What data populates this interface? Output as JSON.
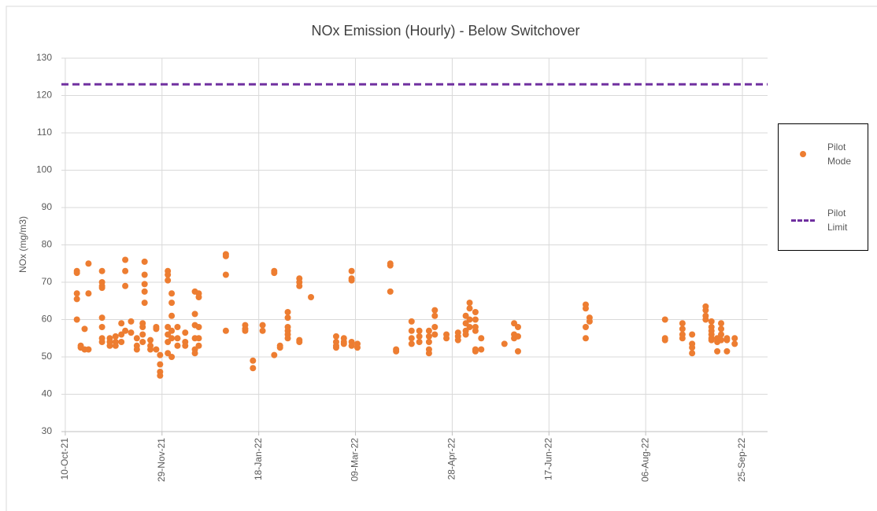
{
  "chart_data": {
    "type": "scatter",
    "title": "NOx Emission (Hourly) - Below Switchover",
    "y_label": "NOx (mg/m3)",
    "ylim": [
      30,
      130
    ],
    "yticks": [
      30,
      40,
      50,
      60,
      70,
      80,
      90,
      100,
      110,
      120,
      130
    ],
    "xlim": [
      "2021-10-08",
      "2022-10-08"
    ],
    "xticks": [
      {
        "value": "2021-10-10",
        "label": "10-Oct-21"
      },
      {
        "value": "2021-11-29",
        "label": "29-Nov-21"
      },
      {
        "value": "2022-01-18",
        "label": "18-Jan-22"
      },
      {
        "value": "2022-03-09",
        "label": "09-Mar-22"
      },
      {
        "value": "2022-04-28",
        "label": "28-Apr-22"
      },
      {
        "value": "2022-06-17",
        "label": "17-Jun-22"
      },
      {
        "value": "2022-08-06",
        "label": "06-Aug-22"
      },
      {
        "value": "2022-09-25",
        "label": "25-Sep-22"
      }
    ],
    "grid": true,
    "legend": "right",
    "series": [
      {
        "name": "Pilot Mode",
        "color": "#ed7d31",
        "x": [
          "2021-10-16",
          "2021-10-16",
          "2021-10-16",
          "2021-10-16",
          "2021-10-16",
          "2021-10-18",
          "2021-10-18",
          "2021-10-20",
          "2021-10-20",
          "2021-10-22",
          "2021-10-22",
          "2021-10-22",
          "2021-10-29",
          "2021-10-29",
          "2021-10-29",
          "2021-10-29",
          "2021-10-29",
          "2021-10-29",
          "2021-10-29",
          "2021-10-29",
          "2021-11-02",
          "2021-11-02",
          "2021-11-02",
          "2021-11-05",
          "2021-11-05",
          "2021-11-05",
          "2021-11-08",
          "2021-11-08",
          "2021-11-08",
          "2021-11-10",
          "2021-11-10",
          "2021-11-10",
          "2021-11-10",
          "2021-11-13",
          "2021-11-13",
          "2021-11-16",
          "2021-11-16",
          "2021-11-16",
          "2021-11-19",
          "2021-11-19",
          "2021-11-19",
          "2021-11-19",
          "2021-11-20",
          "2021-11-20",
          "2021-11-20",
          "2021-11-20",
          "2021-11-20",
          "2021-11-23",
          "2021-11-23",
          "2021-11-23",
          "2021-11-26",
          "2021-11-26",
          "2021-11-26",
          "2021-11-28",
          "2021-11-28",
          "2021-11-28",
          "2021-11-28",
          "2021-12-02",
          "2021-12-02",
          "2021-12-02",
          "2021-12-02",
          "2021-12-02",
          "2021-12-02",
          "2021-12-02",
          "2021-12-04",
          "2021-12-04",
          "2021-12-04",
          "2021-12-04",
          "2021-12-04",
          "2021-12-04",
          "2021-12-07",
          "2021-12-07",
          "2021-12-07",
          "2021-12-11",
          "2021-12-11",
          "2021-12-11",
          "2021-12-16",
          "2021-12-16",
          "2021-12-16",
          "2021-12-16",
          "2021-12-16",
          "2021-12-16",
          "2021-12-18",
          "2021-12-18",
          "2021-12-18",
          "2021-12-18",
          "2021-12-18",
          "2022-01-01",
          "2022-01-01",
          "2022-01-01",
          "2022-01-01",
          "2022-01-11",
          "2022-01-11",
          "2022-01-11",
          "2022-01-15",
          "2022-01-15",
          "2022-01-20",
          "2022-01-20",
          "2022-01-26",
          "2022-01-26",
          "2022-01-26",
          "2022-01-29",
          "2022-01-29",
          "2022-02-02",
          "2022-02-02",
          "2022-02-02",
          "2022-02-02",
          "2022-02-02",
          "2022-02-02",
          "2022-02-08",
          "2022-02-08",
          "2022-02-08",
          "2022-02-08",
          "2022-02-08",
          "2022-02-14",
          "2022-02-27",
          "2022-02-27",
          "2022-02-27",
          "2022-02-27",
          "2022-03-03",
          "2022-03-03",
          "2022-03-03",
          "2022-03-07",
          "2022-03-07",
          "2022-03-07",
          "2022-03-07",
          "2022-03-07",
          "2022-03-10",
          "2022-03-10",
          "2022-03-27",
          "2022-03-27",
          "2022-03-27",
          "2022-03-30",
          "2022-03-30",
          "2022-04-07",
          "2022-04-07",
          "2022-04-07",
          "2022-04-07",
          "2022-04-11",
          "2022-04-11",
          "2022-04-11",
          "2022-04-16",
          "2022-04-16",
          "2022-04-16",
          "2022-04-16",
          "2022-04-16",
          "2022-04-19",
          "2022-04-19",
          "2022-04-19",
          "2022-04-19",
          "2022-04-25",
          "2022-04-25",
          "2022-05-01",
          "2022-05-01",
          "2022-05-01",
          "2022-05-05",
          "2022-05-05",
          "2022-05-05",
          "2022-05-05",
          "2022-05-07",
          "2022-05-07",
          "2022-05-07",
          "2022-05-07",
          "2022-05-10",
          "2022-05-10",
          "2022-05-10",
          "2022-05-10",
          "2022-05-10",
          "2022-05-10",
          "2022-05-13",
          "2022-05-13",
          "2022-05-25",
          "2022-05-30",
          "2022-05-30",
          "2022-05-30",
          "2022-06-01",
          "2022-06-01",
          "2022-06-01",
          "2022-07-06",
          "2022-07-06",
          "2022-07-06",
          "2022-07-06",
          "2022-07-08",
          "2022-07-08",
          "2022-08-16",
          "2022-08-16",
          "2022-08-16",
          "2022-08-25",
          "2022-08-25",
          "2022-08-25",
          "2022-08-25",
          "2022-08-30",
          "2022-08-30",
          "2022-08-30",
          "2022-08-30",
          "2022-09-06",
          "2022-09-06",
          "2022-09-06",
          "2022-09-06",
          "2022-09-09",
          "2022-09-09",
          "2022-09-09",
          "2022-09-09",
          "2022-09-09",
          "2022-09-09",
          "2022-09-12",
          "2022-09-12",
          "2022-09-12",
          "2022-09-14",
          "2022-09-14",
          "2022-09-14",
          "2022-09-14",
          "2022-09-17",
          "2022-09-17",
          "2022-09-17",
          "2022-09-21",
          "2022-09-21"
        ],
        "values": [
          73,
          72.5,
          67,
          65.5,
          60,
          53,
          52.5,
          57.5,
          52,
          75,
          67,
          52,
          73,
          70,
          69,
          68.5,
          60.5,
          58,
          55,
          54,
          55,
          54,
          53,
          55.5,
          54,
          53,
          59,
          56,
          54,
          76,
          73,
          69,
          57,
          59.5,
          56.5,
          55,
          53,
          52,
          59,
          58,
          56,
          54,
          75.5,
          72,
          69.5,
          67.5,
          64.5,
          54.5,
          53,
          52,
          58,
          57.5,
          52,
          50.5,
          48,
          46,
          45,
          58,
          56,
          54,
          51,
          73,
          72,
          70.5,
          67,
          64.5,
          61,
          55,
          50,
          57,
          58,
          55,
          53,
          56.5,
          54,
          53,
          67.5,
          61.5,
          58.5,
          55,
          52,
          51,
          67,
          66,
          58,
          55,
          53,
          77.5,
          77,
          72,
          57,
          58.5,
          57.5,
          57,
          49,
          47,
          58.5,
          57,
          73,
          72.5,
          50.5,
          53,
          52.5,
          62,
          60.5,
          58,
          57,
          56,
          55,
          71,
          70,
          69,
          54.5,
          54,
          66,
          55.5,
          54,
          53,
          52.5,
          55,
          54,
          53.5,
          73,
          71,
          70.5,
          54,
          53,
          53.5,
          52.5,
          75,
          74.5,
          67.5,
          52,
          51.5,
          59.5,
          57,
          55,
          53.5,
          57,
          55.5,
          54,
          54,
          52,
          51,
          55.5,
          57,
          62.5,
          61,
          58,
          56,
          56,
          55,
          56.5,
          55.5,
          54.5,
          61,
          59,
          57,
          56,
          64.5,
          63,
          60,
          58,
          62,
          60,
          58,
          57,
          52,
          51.5,
          55,
          52,
          53.5,
          59,
          56,
          55,
          58,
          55.5,
          51.5,
          64,
          63,
          58,
          55,
          60.5,
          59.5,
          60,
          55,
          54.5,
          59,
          57.5,
          56,
          55,
          56,
          53.5,
          52.5,
          51,
          63.5,
          62.5,
          61,
          60,
          59.5,
          58,
          57,
          56,
          55,
          54.5,
          55,
          54,
          51.5,
          59,
          57.5,
          56,
          54.5,
          55,
          54.5,
          51.5,
          55,
          53.5
        ]
      },
      {
        "name": "Pilot Limit",
        "color": "#7030a0",
        "type": "hline",
        "values": [
          123
        ]
      }
    ]
  }
}
